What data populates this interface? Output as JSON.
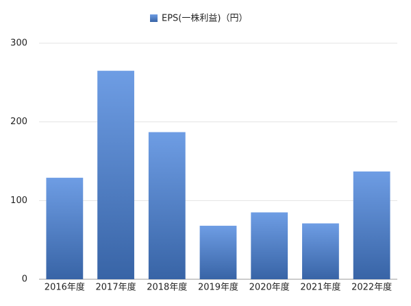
{
  "chart_data": {
    "type": "bar",
    "legend": "EPS(一株利益)（円）",
    "categories": [
      "2016年度",
      "2017年度",
      "2018年度",
      "2019年度",
      "2020年度",
      "2021年度",
      "2022年度"
    ],
    "values": [
      129,
      265,
      187,
      68,
      85,
      71,
      137
    ],
    "color": "#4a85dd",
    "ylim": [
      0,
      300
    ],
    "yticks": [
      0,
      100,
      200,
      300
    ],
    "grid": true
  }
}
